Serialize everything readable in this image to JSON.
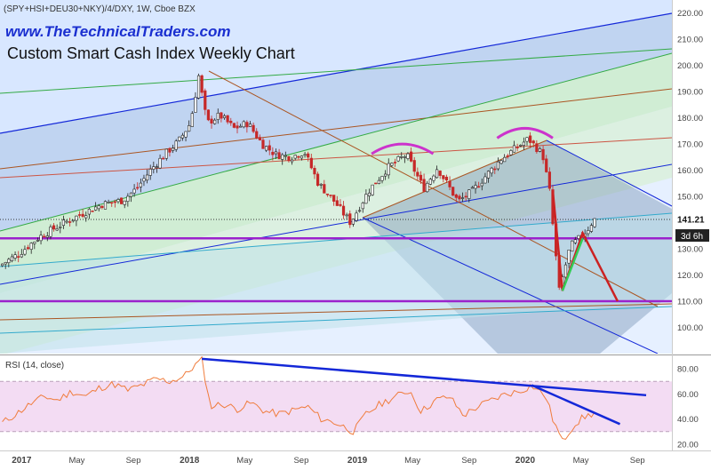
{
  "header": {
    "symbol": "(SPY+HSI+DEU30+NKY)/4/DXY, 1W, Cboe BZX",
    "website": "www.TheTechnicalTraders.com",
    "title": "Custom Smart Cash Index Weekly Chart"
  },
  "price_badges": {
    "last": "141.21",
    "countdown": "3d 6h"
  },
  "rsi_panel": {
    "label": "RSI (14, close)"
  },
  "colors": {
    "bull_candle": "#222222",
    "bear_candle": "#c62828",
    "rsi_line": "#f07c3c",
    "rsi_band": "#f3dcf3",
    "trend_blue": "#1428d8",
    "trend_red": "#cc2222",
    "trend_green": "#33cc55",
    "support_purple": "#9b22cc",
    "arc_magenta": "#cc33cc"
  },
  "chart_data": [
    {
      "type": "candlestick",
      "name": "Custom Smart Cash Index Weekly Chart",
      "ylim": [
        90,
        225
      ],
      "y_ticks": [
        100,
        110,
        120,
        130,
        140,
        150,
        160,
        170,
        180,
        190,
        200,
        210,
        220
      ],
      "x_ticks": [
        "2017",
        "May",
        "Sep",
        "2018",
        "May",
        "Sep",
        "2019",
        "May",
        "Sep",
        "2020",
        "May",
        "Sep"
      ],
      "x_tick_dates": [
        "2017-01-01",
        "2017-05-01",
        "2017-09-01",
        "2018-01-01",
        "2018-05-01",
        "2018-09-01",
        "2019-01-01",
        "2019-05-01",
        "2019-09-01",
        "2020-01-01",
        "2020-05-01",
        "2020-09-01"
      ],
      "xlim": [
        "2016-11-15",
        "2020-11-15"
      ],
      "price_path": [
        [
          "2016-11-20",
          123.5
        ],
        [
          "2017-01-01",
          128
        ],
        [
          "2017-02-15",
          134.5
        ],
        [
          "2017-04-01",
          139
        ],
        [
          "2017-05-15",
          143
        ],
        [
          "2017-07-01",
          147
        ],
        [
          "2017-08-15",
          148.5
        ],
        [
          "2017-09-15",
          153
        ],
        [
          "2017-10-15",
          160
        ],
        [
          "2017-11-15",
          166
        ],
        [
          "2017-12-15",
          171
        ],
        [
          "2018-01-10",
          178
        ],
        [
          "2018-01-28",
          196
        ],
        [
          "2018-02-15",
          178
        ],
        [
          "2018-03-15",
          181
        ],
        [
          "2018-04-15",
          176
        ],
        [
          "2018-05-15",
          178
        ],
        [
          "2018-06-15",
          170
        ],
        [
          "2018-07-15",
          166
        ],
        [
          "2018-08-15",
          165
        ],
        [
          "2018-09-15",
          167
        ],
        [
          "2018-10-15",
          155
        ],
        [
          "2018-11-15",
          149
        ],
        [
          "2018-12-24",
          140
        ],
        [
          "2019-02-01",
          152
        ],
        [
          "2019-03-15",
          161
        ],
        [
          "2019-04-25",
          166
        ],
        [
          "2019-06-01",
          153
        ],
        [
          "2019-07-01",
          161
        ],
        [
          "2019-08-15",
          148
        ],
        [
          "2019-09-15",
          152
        ],
        [
          "2019-10-15",
          158
        ],
        [
          "2019-11-15",
          164
        ],
        [
          "2019-12-15",
          168
        ],
        [
          "2020-01-15",
          172
        ],
        [
          "2020-02-15",
          166
        ],
        [
          "2020-03-01",
          152
        ],
        [
          "2020-03-22",
          114
        ],
        [
          "2020-04-15",
          131
        ],
        [
          "2020-05-05",
          134
        ],
        [
          "2020-05-25",
          138
        ],
        [
          "2020-06-05",
          141.21
        ]
      ],
      "last_price": 141.21,
      "horizontal_levels": [
        {
          "price": 134,
          "role": "support",
          "color": "#9b22cc"
        },
        {
          "price": 110,
          "role": "support",
          "color": "#9b22cc"
        },
        {
          "price": 141.21,
          "role": "last-price",
          "style": "dotted"
        }
      ],
      "annotations": {
        "arcs": [
          {
            "from": "2019-02-01",
            "to": "2019-06-15",
            "level": 169,
            "label": "left-shoulder"
          },
          {
            "from": "2019-11-01",
            "to": "2020-03-01",
            "level": 175,
            "label": "head"
          }
        ],
        "red_path": [
          [
            "2020-03-01",
            152
          ],
          [
            "2020-03-22",
            114
          ],
          [
            "2020-05-05",
            136
          ],
          [
            "2020-07-20",
            110
          ]
        ],
        "green_path": [
          [
            "2020-03-22",
            114
          ],
          [
            "2020-05-05",
            134
          ]
        ]
      }
    },
    {
      "type": "line",
      "name": "RSI (14, close)",
      "ylim": [
        15,
        90
      ],
      "y_ticks": [
        20,
        40,
        60,
        80
      ],
      "band": [
        30,
        70
      ],
      "series": [
        {
          "name": "RSI (14, close)",
          "color": "#f07c3c",
          "points": [
            [
              "2016-11-20",
              37
            ],
            [
              "2016-12-20",
              44
            ],
            [
              "2017-01-20",
              52
            ],
            [
              "2017-02-20",
              58
            ],
            [
              "2017-03-20",
              55
            ],
            [
              "2017-04-20",
              62
            ],
            [
              "2017-05-20",
              58
            ],
            [
              "2017-06-20",
              65
            ],
            [
              "2017-07-20",
              68
            ],
            [
              "2017-08-20",
              63
            ],
            [
              "2017-09-20",
              67
            ],
            [
              "2017-10-20",
              72
            ],
            [
              "2017-11-20",
              70
            ],
            [
              "2017-12-20",
              74
            ],
            [
              "2018-01-10",
              82
            ],
            [
              "2018-01-28",
              87
            ],
            [
              "2018-02-15",
              50
            ],
            [
              "2018-03-15",
              52
            ],
            [
              "2018-04-15",
              48
            ],
            [
              "2018-05-15",
              53
            ],
            [
              "2018-06-15",
              46
            ],
            [
              "2018-07-15",
              44
            ],
            [
              "2018-08-15",
              47
            ],
            [
              "2018-09-15",
              50
            ],
            [
              "2018-10-15",
              40
            ],
            [
              "2018-11-15",
              37
            ],
            [
              "2018-12-24",
              30
            ],
            [
              "2019-01-20",
              44
            ],
            [
              "2019-02-20",
              52
            ],
            [
              "2019-03-20",
              57
            ],
            [
              "2019-04-25",
              63
            ],
            [
              "2019-05-20",
              46
            ],
            [
              "2019-06-20",
              55
            ],
            [
              "2019-07-20",
              58
            ],
            [
              "2019-08-20",
              43
            ],
            [
              "2019-09-20",
              50
            ],
            [
              "2019-10-20",
              55
            ],
            [
              "2019-11-20",
              60
            ],
            [
              "2019-12-20",
              62
            ],
            [
              "2020-01-15",
              67
            ],
            [
              "2020-02-15",
              58
            ],
            [
              "2020-03-01",
              40
            ],
            [
              "2020-03-22",
              22
            ],
            [
              "2020-04-15",
              35
            ],
            [
              "2020-05-05",
              41
            ],
            [
              "2020-05-25",
              44
            ],
            [
              "2020-06-05",
              46
            ]
          ]
        }
      ],
      "trendlines": [
        {
          "from": [
            "2018-01-28",
            88
          ],
          "to": [
            "2020-09-20",
            59
          ],
          "color": "#1428d8"
        },
        {
          "from": [
            "2020-01-15",
            67
          ],
          "to": [
            "2020-07-25",
            36
          ],
          "color": "#1428d8"
        }
      ]
    }
  ]
}
